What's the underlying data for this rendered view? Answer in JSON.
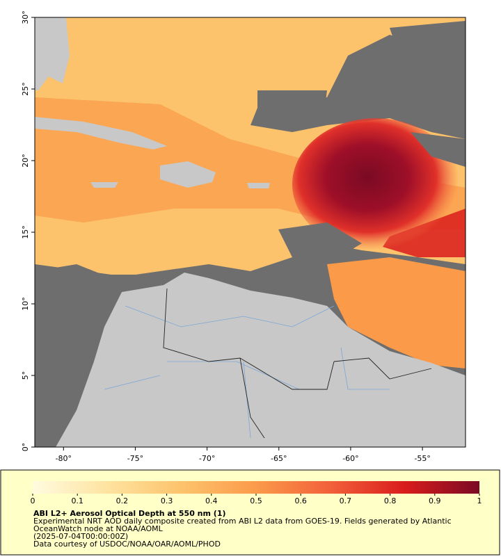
{
  "map": {
    "xlim": [
      -82,
      -52
    ],
    "ylim": [
      0,
      30
    ],
    "xticks": [
      {
        "value": -80,
        "label": "-80°"
      },
      {
        "value": -75,
        "label": "-75°"
      },
      {
        "value": -70,
        "label": "-70°"
      },
      {
        "value": -65,
        "label": "-65°"
      },
      {
        "value": -60,
        "label": "-60°"
      },
      {
        "value": -55,
        "label": "-55°"
      }
    ],
    "yticks": [
      {
        "value": 0,
        "label": "0°"
      },
      {
        "value": 5,
        "label": "5°"
      },
      {
        "value": 10,
        "label": "10°"
      },
      {
        "value": 15,
        "label": "15°"
      },
      {
        "value": 20,
        "label": "20°"
      },
      {
        "value": 25,
        "label": "25°"
      },
      {
        "value": 30,
        "label": "30°"
      }
    ],
    "colorbar": {
      "lim": [
        0,
        1
      ],
      "ticks": [
        0,
        0.1,
        0.2,
        0.3,
        0.4,
        0.5,
        0.6,
        0.7,
        0.8,
        0.9,
        1
      ],
      "colors": [
        "#fffbe0",
        "#fee3a0",
        "#fdc36c",
        "#fb9a4a",
        "#f2603a",
        "#d91c1c",
        "#7a0a24"
      ]
    },
    "title": "ABI L2+ Aerosol Optical Depth at 550 nm (1)",
    "description": [
      "Experimental NRT AOD daily composite created from ABI L2 data from GOES-19. Fields generated by Atlantic",
      "OceanWatch node at NOAA/AOML",
      "(2025-07-04T00:00:00Z)",
      "Data courtesy of USDOC/NOAA/OAR/AOML/PHOD"
    ]
  }
}
